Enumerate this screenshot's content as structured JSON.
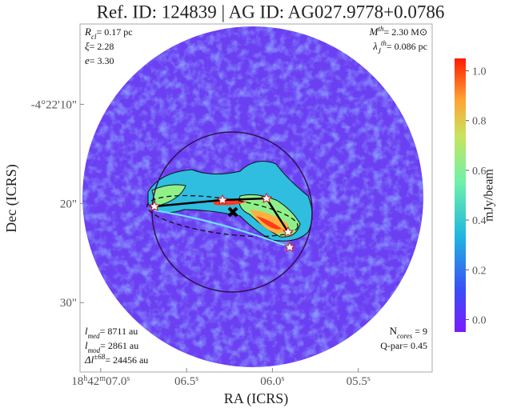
{
  "chart_data": {
    "type": "image",
    "title": "Ref. ID: 124839 | AG ID: AG027.9778+0.0786",
    "xlabel": "RA (ICRS)",
    "ylabel": "Dec (ICRS)",
    "xlim": [
      7.12,
      5.07
    ],
    "ylim": [
      1.9,
      37.0
    ],
    "xticks": [
      {
        "value": 7.0,
        "label": "18h42m07.0s"
      },
      {
        "value": 6.5,
        "label": "06.5s"
      },
      {
        "value": 6.0,
        "label": "06.0s"
      },
      {
        "value": 5.5,
        "label": "05.5s"
      }
    ],
    "yticks": [
      {
        "value": 10,
        "label": "-4°22'10\""
      },
      {
        "value": 20,
        "label": "20\""
      },
      {
        "value": 30,
        "label": "30\""
      }
    ],
    "colorbar": {
      "label": "mJy/beam",
      "clim": [
        -0.05,
        1.05
      ],
      "ticks": [
        {
          "value": 0,
          "label": "0.0"
        },
        0.2,
        0.4,
        0.6,
        0.8,
        {
          "value": 1,
          "label": "1.0"
        }
      ]
    },
    "annotations": {
      "top_left": [
        {
          "sym": "R",
          "sub": "cl",
          "text": "= 0.17 pc"
        },
        {
          "sym": "ξ",
          "text": "= 2.28"
        },
        {
          "sym": "e",
          "text": "= 3.30"
        }
      ],
      "top_right": [
        {
          "sym": "M",
          "sup": "th",
          "text": "= 2.30 M⊙"
        },
        {
          "sym": "λ",
          "sub": "J",
          "sup": "th",
          "text": "= 0.086 pc"
        }
      ],
      "bottom_left": [
        {
          "sym": "l",
          "sub": "med",
          "text": "= 8711 au"
        },
        {
          "sym": "l",
          "sub": "mod",
          "text": "= 2861 au"
        },
        {
          "sym": "Δl",
          "sup": "±68",
          "text": "= 24456 au"
        }
      ],
      "bottom_right": [
        {
          "plain": "N",
          "sub": "cores",
          "text": " = 9"
        },
        {
          "text": "Q-par= 0.45"
        }
      ]
    }
  }
}
